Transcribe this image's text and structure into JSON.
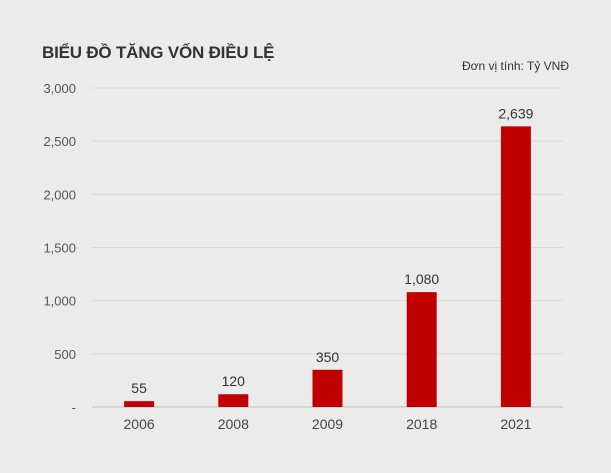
{
  "chart_data": {
    "type": "bar",
    "title": "BIỂU ĐỒ TĂNG VỐN ĐIỀU LỆ",
    "unit_note": "Đơn vị tính: Tỷ VNĐ",
    "categories": [
      "2006",
      "2008",
      "2009",
      "2018",
      "2021"
    ],
    "values": [
      55,
      120,
      350,
      1080,
      2639
    ],
    "value_labels": [
      "55",
      "120",
      "350",
      "1,080",
      "2,639"
    ],
    "ylim": [
      0,
      3000
    ],
    "yticks": [
      0,
      500,
      1000,
      1500,
      2000,
      2500,
      3000
    ],
    "ytick_labels": [
      "-",
      "500",
      "1,000",
      "1,500",
      "2,000",
      "2,500",
      "3,000"
    ],
    "grid": true,
    "bar_color": "#c00000",
    "grid_color": "#d9d9d9",
    "axis_color": "#bfbfbf"
  }
}
